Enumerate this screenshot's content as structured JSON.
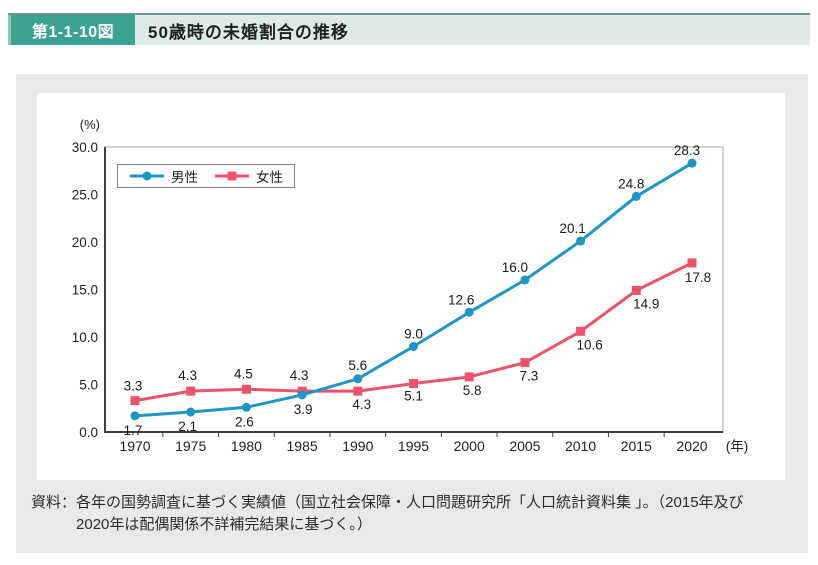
{
  "header": {
    "label": "第1-1-10図",
    "title": "50歳時の未婚割合の推移"
  },
  "chart_data": {
    "type": "line",
    "title": "50歳時の未婚割合の推移",
    "xlabel": "(年)",
    "ylabel": "(%)",
    "ylim": [
      0,
      30
    ],
    "ytick_step": 5,
    "grid": false,
    "legend_position": "top-left",
    "categories": [
      "1970",
      "1975",
      "1980",
      "1985",
      "1990",
      "1995",
      "2000",
      "2005",
      "2010",
      "2015",
      "2020"
    ],
    "series": [
      {
        "name": "男性",
        "color": "#1e96c4",
        "marker": "circle",
        "values": [
          1.7,
          2.1,
          2.6,
          3.9,
          5.6,
          9.0,
          12.6,
          16.0,
          20.1,
          24.8,
          28.3
        ],
        "label_offsets": [
          [
            -2,
            19
          ],
          [
            -3,
            19
          ],
          [
            -2,
            19
          ],
          [
            1,
            19
          ],
          [
            0,
            -9
          ],
          [
            0,
            -8
          ],
          [
            -8,
            -8
          ],
          [
            -10,
            -8
          ],
          [
            -8,
            -8
          ],
          [
            -5,
            -8
          ],
          [
            -5,
            -8
          ]
        ]
      },
      {
        "name": "女性",
        "color": "#ea5369",
        "marker": "square",
        "values": [
          3.3,
          4.3,
          4.5,
          4.3,
          4.3,
          5.1,
          5.8,
          7.3,
          10.6,
          14.9,
          17.8
        ],
        "label_offsets": [
          [
            -2,
            -10
          ],
          [
            -3,
            -11
          ],
          [
            -3,
            -11
          ],
          [
            -3,
            -11
          ],
          [
            4,
            18
          ],
          [
            0,
            17
          ],
          [
            3,
            18
          ],
          [
            4,
            18
          ],
          [
            9,
            18
          ],
          [
            10,
            18
          ],
          [
            6,
            19
          ]
        ]
      }
    ]
  },
  "source": {
    "label": "資料：",
    "line1": "各年の国勢調査に基づく実績値（国立社会保障・人口問題研究所「人口統計資料集 」。（2015年及び",
    "line2": "2020年は配偶関係不詳補完結果に基づく。）"
  },
  "colors": {
    "male": "#1e96c4",
    "female": "#ea5369",
    "header_teal": "#3aa392",
    "header_teal_light": "#8ec7b9",
    "header_band": "#dcebe5",
    "header_top_line": "#6e9693",
    "panel_bg": "#e9e9e9",
    "axis_dark": "#404040",
    "axis_light": "#a0a0a0",
    "text": "#222222"
  }
}
